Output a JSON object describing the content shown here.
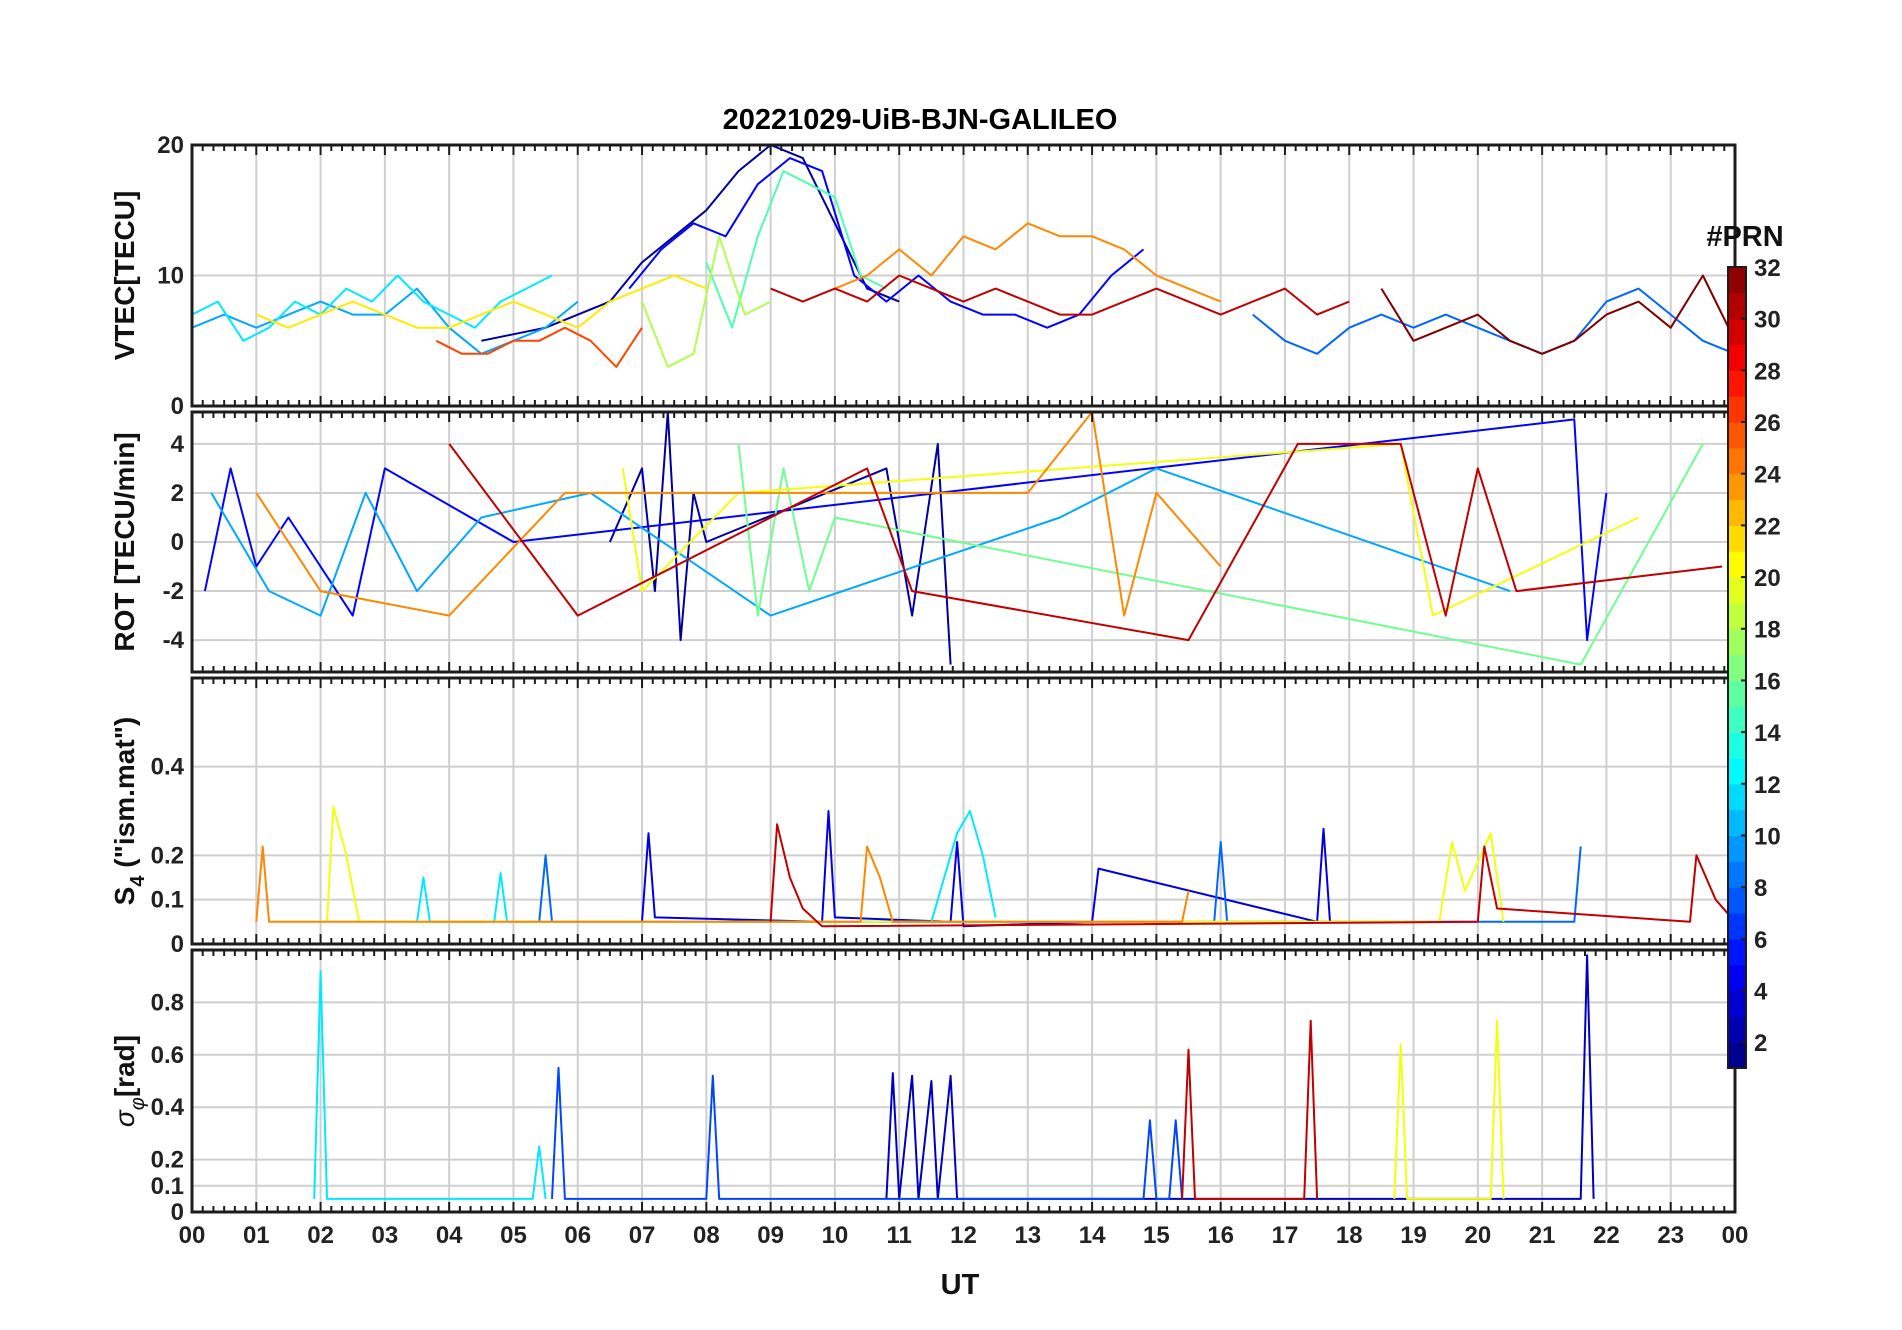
{
  "chart_data": [
    {
      "type": "line",
      "id": "vtec",
      "title": "20221029-UiB-BJN-GALILEO",
      "ylabel": "VTEC[TECU]",
      "xlabel": "",
      "ylim": [
        0,
        20
      ],
      "yticks": [
        0,
        10,
        20
      ],
      "xlim_hours": [
        0,
        24
      ],
      "series": [
        {
          "name": "PRN 2",
          "prn": 2,
          "x": [
            4.5,
            5.5,
            6.5,
            7.0,
            7.5,
            8.0,
            8.5,
            9.0,
            9.5,
            10.0,
            10.5,
            11.0
          ],
          "y": [
            5,
            6,
            8,
            11,
            13,
            15,
            18,
            20,
            19,
            14,
            9,
            8
          ]
        },
        {
          "name": "PRN 5",
          "prn": 5,
          "x": [
            6.8,
            7.3,
            7.8,
            8.3,
            8.8,
            9.3,
            9.8,
            10.3,
            10.8,
            11.3,
            11.8,
            12.3,
            12.8,
            13.3,
            13.8,
            14.3,
            14.8
          ],
          "y": [
            9,
            12,
            14,
            13,
            17,
            19,
            18,
            10,
            8,
            10,
            8,
            7,
            7,
            6,
            7,
            10,
            12
          ]
        },
        {
          "name": "PRN 8",
          "prn": 8,
          "x": [
            16.5,
            17.0,
            17.5,
            18.0,
            18.5,
            19.0,
            19.5,
            20.0,
            20.5,
            21.0,
            21.5,
            22.0,
            22.5,
            23.0,
            23.5,
            24.0
          ],
          "y": [
            7,
            5,
            4,
            6,
            7,
            6,
            7,
            6,
            5,
            4,
            5,
            8,
            9,
            7,
            5,
            4
          ]
        },
        {
          "name": "PRN 10",
          "prn": 10,
          "x": [
            0.0,
            0.5,
            1.0,
            1.5,
            2.0,
            2.5,
            3.0,
            3.5,
            4.0,
            4.5,
            5.0,
            5.5,
            6.0
          ],
          "y": [
            6,
            7,
            6,
            7,
            8,
            7,
            7,
            9,
            6,
            4,
            5,
            6,
            8
          ]
        },
        {
          "name": "PRN 12",
          "prn": 12,
          "x": [
            0.0,
            0.4,
            0.8,
            1.2,
            1.6,
            2.0,
            2.4,
            2.8,
            3.2,
            3.6,
            4.0,
            4.4,
            4.8,
            5.2,
            5.6
          ],
          "y": [
            7,
            8,
            5,
            6,
            8,
            7,
            9,
            8,
            10,
            8,
            7,
            6,
            8,
            9,
            10
          ]
        },
        {
          "name": "PRN 15",
          "prn": 15,
          "x": [
            8.0,
            8.4,
            8.8,
            9.2,
            9.6,
            10.0,
            10.4,
            10.8
          ],
          "y": [
            11,
            6,
            13,
            18,
            17,
            16,
            10,
            9
          ]
        },
        {
          "name": "PRN 18",
          "prn": 18,
          "x": [
            7.0,
            7.4,
            7.8,
            8.2,
            8.6,
            9.0
          ],
          "y": [
            8,
            3,
            4,
            13,
            7,
            8
          ]
        },
        {
          "name": "PRN 21",
          "prn": 21,
          "x": [
            1.0,
            1.5,
            2.0,
            2.5,
            3.0,
            3.5,
            4.0,
            4.5,
            5.0,
            5.5,
            6.0,
            6.5,
            7.0,
            7.5,
            8.0
          ],
          "y": [
            7,
            6,
            7,
            8,
            7,
            6,
            6,
            7,
            8,
            7,
            6,
            8,
            9,
            10,
            9
          ]
        },
        {
          "name": "PRN 24",
          "prn": 24,
          "x": [
            10.0,
            10.5,
            11.0,
            11.5,
            12.0,
            12.5,
            13.0,
            13.5,
            14.0,
            14.5,
            15.0,
            15.5,
            16.0
          ],
          "y": [
            9,
            10,
            12,
            10,
            13,
            12,
            14,
            13,
            13,
            12,
            10,
            9,
            8
          ]
        },
        {
          "name": "PRN 26",
          "prn": 26,
          "x": [
            3.8,
            4.2,
            4.6,
            5.0,
            5.4,
            5.8,
            6.2,
            6.6,
            7.0
          ],
          "y": [
            5,
            4,
            4,
            5,
            5,
            6,
            5,
            3,
            6
          ]
        },
        {
          "name": "PRN 30",
          "prn": 30,
          "x": [
            9.0,
            9.5,
            10.0,
            10.5,
            11.0,
            11.5,
            12.0,
            12.5,
            13.0,
            13.5,
            14.0,
            14.5,
            15.0,
            15.5,
            16.0,
            16.5,
            17.0,
            17.5,
            18.0
          ],
          "y": [
            9,
            8,
            9,
            8,
            10,
            9,
            8,
            9,
            8,
            7,
            7,
            8,
            9,
            8,
            7,
            8,
            9,
            7,
            8
          ]
        },
        {
          "name": "PRN 32",
          "prn": 32,
          "x": [
            18.5,
            19.0,
            19.5,
            20.0,
            20.5,
            21.0,
            21.5,
            22.0,
            22.5,
            23.0,
            23.5,
            24.0
          ],
          "y": [
            9,
            5,
            6,
            7,
            5,
            4,
            5,
            7,
            8,
            6,
            10,
            5
          ]
        }
      ]
    },
    {
      "type": "line",
      "id": "rot",
      "ylabel": "ROT [TECU/min]",
      "ylim": [
        -5.3,
        5.3
      ],
      "yticks": [
        -4,
        -2,
        0,
        2,
        4
      ],
      "xlim_hours": [
        0,
        24
      ],
      "series": [
        {
          "name": "PRN 2",
          "prn": 2,
          "x": [
            6.5,
            7.0,
            7.2,
            7.4,
            7.6,
            7.8,
            8.0,
            10.8,
            11.2,
            11.6,
            11.8
          ],
          "y": [
            0,
            3,
            -2,
            5.3,
            -4,
            2,
            0,
            3,
            -3,
            4,
            -5
          ]
        },
        {
          "name": "PRN 5",
          "prn": 5,
          "x": [
            0.2,
            0.6,
            1.0,
            1.5,
            2.5,
            3.0,
            5.0,
            21.5,
            21.7,
            22.0
          ],
          "y": [
            -2,
            3,
            -1,
            1,
            -3,
            3,
            0,
            5,
            -4,
            2
          ]
        },
        {
          "name": "PRN 10",
          "prn": 10,
          "x": [
            0.3,
            1.2,
            2.0,
            2.7,
            3.5,
            4.5,
            6.2,
            9.0,
            13.5,
            15.0,
            20.5
          ],
          "y": [
            2,
            -2,
            -3,
            2,
            -2,
            1,
            2,
            -3,
            1,
            3,
            -2
          ]
        },
        {
          "name": "PRN 16",
          "prn": 16,
          "x": [
            8.5,
            8.8,
            9.2,
            9.6,
            10.0,
            21.6,
            23.5
          ],
          "y": [
            4,
            -3,
            3,
            -2,
            1,
            -5,
            4
          ]
        },
        {
          "name": "PRN 20",
          "prn": 20,
          "x": [
            6.7,
            7.0,
            8.5,
            18.8,
            19.3,
            22.5
          ],
          "y": [
            3,
            -2,
            2,
            4,
            -3,
            1
          ]
        },
        {
          "name": "PRN 24",
          "prn": 24,
          "x": [
            1.0,
            2.0,
            4.0,
            5.8,
            13.0,
            14.0,
            14.5,
            15.0,
            16.0
          ],
          "y": [
            2,
            -2,
            -3,
            2,
            2,
            5.3,
            -3,
            2,
            -1
          ]
        },
        {
          "name": "PRN 30",
          "prn": 30,
          "x": [
            4.0,
            6.0,
            10.5,
            11.2,
            15.5,
            17.2,
            18.8,
            19.5,
            20.0,
            20.6,
            23.8
          ],
          "y": [
            4,
            -3,
            3,
            -2,
            -4,
            4,
            4,
            -3,
            3,
            -2,
            -1
          ]
        }
      ]
    },
    {
      "type": "line",
      "id": "s4",
      "ylabel": "S4 (\"ism.mat\")",
      "ylim": [
        0,
        0.6
      ],
      "yticks": [
        0,
        0.1,
        0.2,
        0.4
      ],
      "xlim_hours": [
        0,
        24
      ],
      "series": [
        {
          "name": "PRN 4",
          "prn": 4,
          "x": [
            7.0,
            7.1,
            7.2,
            9.8,
            9.9,
            10.0,
            11.8,
            11.9,
            12.0,
            14.0,
            14.1,
            17.5,
            17.6,
            17.7
          ],
          "y": [
            0.05,
            0.25,
            0.06,
            0.05,
            0.3,
            0.06,
            0.05,
            0.23,
            0.04,
            0.05,
            0.17,
            0.05,
            0.26,
            0.05
          ]
        },
        {
          "name": "PRN 8",
          "prn": 8,
          "x": [
            5.4,
            5.5,
            5.6,
            15.9,
            16.0,
            16.1,
            21.5,
            21.6
          ],
          "y": [
            0.05,
            0.2,
            0.05,
            0.05,
            0.23,
            0.05,
            0.05,
            0.22
          ]
        },
        {
          "name": "PRN 12",
          "prn": 12,
          "x": [
            3.5,
            3.6,
            3.7,
            4.7,
            4.8,
            4.9,
            11.5,
            11.7,
            11.9,
            12.1,
            12.3,
            12.5
          ],
          "y": [
            0.05,
            0.15,
            0.05,
            0.05,
            0.16,
            0.05,
            0.05,
            0.15,
            0.25,
            0.3,
            0.2,
            0.06
          ]
        },
        {
          "name": "PRN 20",
          "prn": 20,
          "x": [
            2.1,
            2.2,
            2.4,
            2.6,
            19.4,
            19.6,
            19.8,
            20.2,
            20.4
          ],
          "y": [
            0.05,
            0.31,
            0.2,
            0.05,
            0.05,
            0.23,
            0.12,
            0.25,
            0.05
          ]
        },
        {
          "name": "PRN 24",
          "prn": 24,
          "x": [
            1.0,
            1.1,
            1.2,
            10.4,
            10.5,
            10.7,
            10.9,
            15.4,
            15.5
          ],
          "y": [
            0.05,
            0.22,
            0.05,
            0.05,
            0.22,
            0.15,
            0.05,
            0.05,
            0.12
          ]
        },
        {
          "name": "PRN 30",
          "prn": 30,
          "x": [
            9.0,
            9.1,
            9.3,
            9.5,
            9.8,
            20.0,
            20.1,
            20.3,
            23.3,
            23.4,
            23.7,
            24.0
          ],
          "y": [
            0.05,
            0.27,
            0.15,
            0.08,
            0.04,
            0.05,
            0.22,
            0.08,
            0.05,
            0.2,
            0.1,
            0.05
          ]
        }
      ]
    },
    {
      "type": "line",
      "id": "sigma_phi",
      "ylabel": "σφ[rad]",
      "ylim": [
        0,
        1.0
      ],
      "yticks": [
        0,
        0.1,
        0.2,
        0.4,
        0.6,
        0.8
      ],
      "xlim_hours": [
        0,
        24
      ],
      "series": [
        {
          "name": "PRN 3",
          "prn": 3,
          "x": [
            10.8,
            10.9,
            11.0,
            11.2,
            11.3,
            11.5,
            11.6,
            11.8,
            11.9,
            21.6,
            21.7,
            21.8
          ],
          "y": [
            0.05,
            0.53,
            0.05,
            0.52,
            0.05,
            0.5,
            0.05,
            0.52,
            0.05,
            0.05,
            0.98,
            0.05
          ]
        },
        {
          "name": "PRN 7",
          "prn": 7,
          "x": [
            5.6,
            5.7,
            5.8,
            8.0,
            8.1,
            8.2,
            14.8,
            14.9,
            15.0,
            15.2,
            15.3,
            15.4
          ],
          "y": [
            0.05,
            0.55,
            0.05,
            0.05,
            0.52,
            0.05,
            0.05,
            0.35,
            0.05,
            0.05,
            0.35,
            0.05
          ]
        },
        {
          "name": "PRN 12",
          "prn": 12,
          "x": [
            1.9,
            2.0,
            2.1,
            5.3,
            5.4,
            5.5
          ],
          "y": [
            0.05,
            0.92,
            0.05,
            0.05,
            0.25,
            0.05
          ]
        },
        {
          "name": "PRN 20",
          "prn": 20,
          "x": [
            18.7,
            18.8,
            18.9,
            20.2,
            20.3,
            20.4
          ],
          "y": [
            0.05,
            0.64,
            0.05,
            0.05,
            0.73,
            0.05
          ]
        },
        {
          "name": "PRN 30",
          "prn": 30,
          "x": [
            15.4,
            15.5,
            15.6,
            17.3,
            17.4,
            17.5
          ],
          "y": [
            0.05,
            0.62,
            0.05,
            0.05,
            0.73,
            0.05
          ]
        }
      ]
    }
  ],
  "xaxis": {
    "ticks": [
      "00",
      "01",
      "02",
      "03",
      "04",
      "05",
      "06",
      "07",
      "08",
      "09",
      "10",
      "11",
      "12",
      "13",
      "14",
      "15",
      "16",
      "17",
      "18",
      "19",
      "20",
      "21",
      "22",
      "23",
      "00"
    ],
    "label": "UT"
  },
  "colorbar": {
    "title": "#PRN",
    "range": [
      1,
      32
    ],
    "ticks": [
      "2",
      "4",
      "6",
      "8",
      "10",
      "12",
      "14",
      "16",
      "18",
      "20",
      "22",
      "24",
      "26",
      "28",
      "30",
      "32"
    ]
  }
}
